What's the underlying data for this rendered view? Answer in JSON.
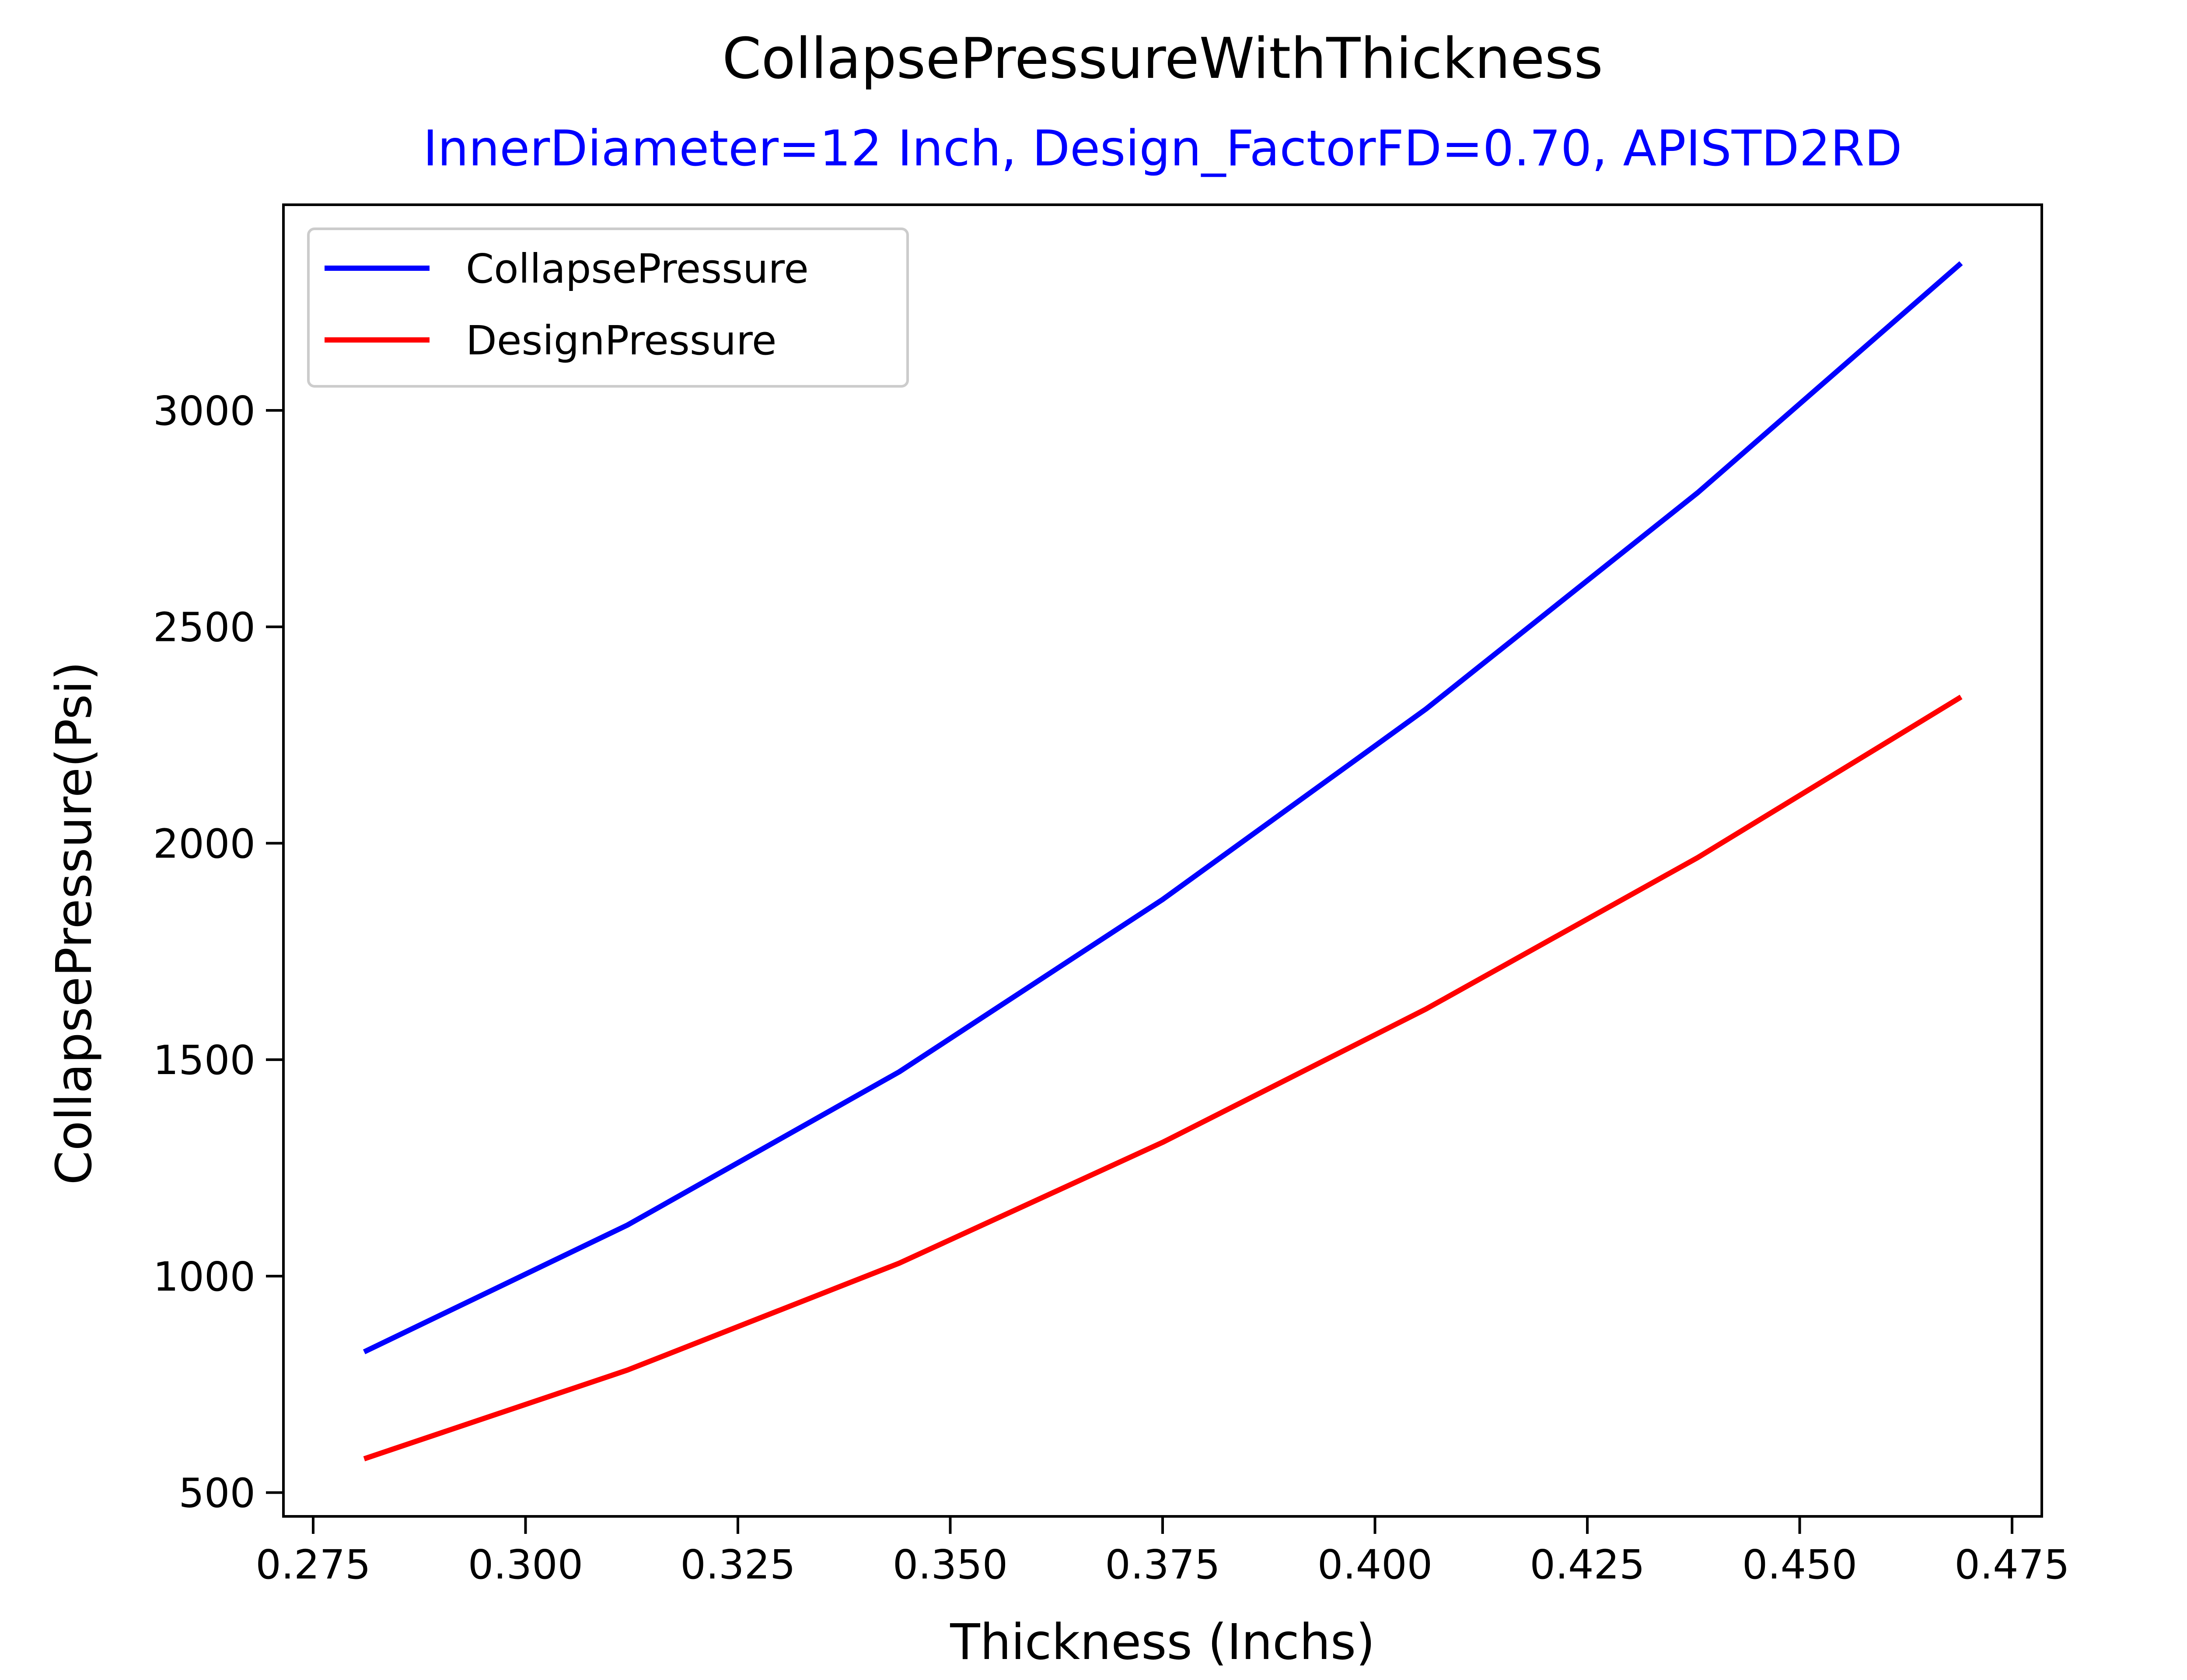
{
  "chart_data": {
    "type": "line",
    "title": "CollapsePressureWithThickness",
    "subtitle": "InnerDiameter=12 Inch, Design_FactorFD=0.70, APISTD2RD",
    "subtitle_color": "#0000ff",
    "xlabel": "Thickness (Inchs)",
    "ylabel": "CollapsePressure(Psi)",
    "xlim": [
      0.2715,
      0.4785
    ],
    "ylim": [
      445,
      3475
    ],
    "xticks": [
      0.275,
      0.3,
      0.325,
      0.35,
      0.375,
      0.4,
      0.425,
      0.45,
      0.475
    ],
    "xtick_labels": [
      "0.275",
      "0.300",
      "0.325",
      "0.350",
      "0.375",
      "0.400",
      "0.425",
      "0.450",
      "0.475"
    ],
    "yticks": [
      500,
      1000,
      1500,
      2000,
      2500,
      3000
    ],
    "ytick_labels": [
      "500",
      "1000",
      "1500",
      "2000",
      "2500",
      "3000"
    ],
    "grid": false,
    "legend_position": "upper-left",
    "x": [
      0.281,
      0.312,
      0.344,
      0.375,
      0.406,
      0.438,
      0.469
    ],
    "series": [
      {
        "name": "CollapsePressure",
        "color": "#0000ff",
        "values": [
          825,
          1118,
          1472,
          1870,
          2310,
          2810,
          3340
        ]
      },
      {
        "name": "DesignPressure",
        "color": "#ff0000",
        "values": [
          578,
          783,
          1030,
          1309,
          1617,
          1967,
          2338
        ]
      }
    ]
  }
}
